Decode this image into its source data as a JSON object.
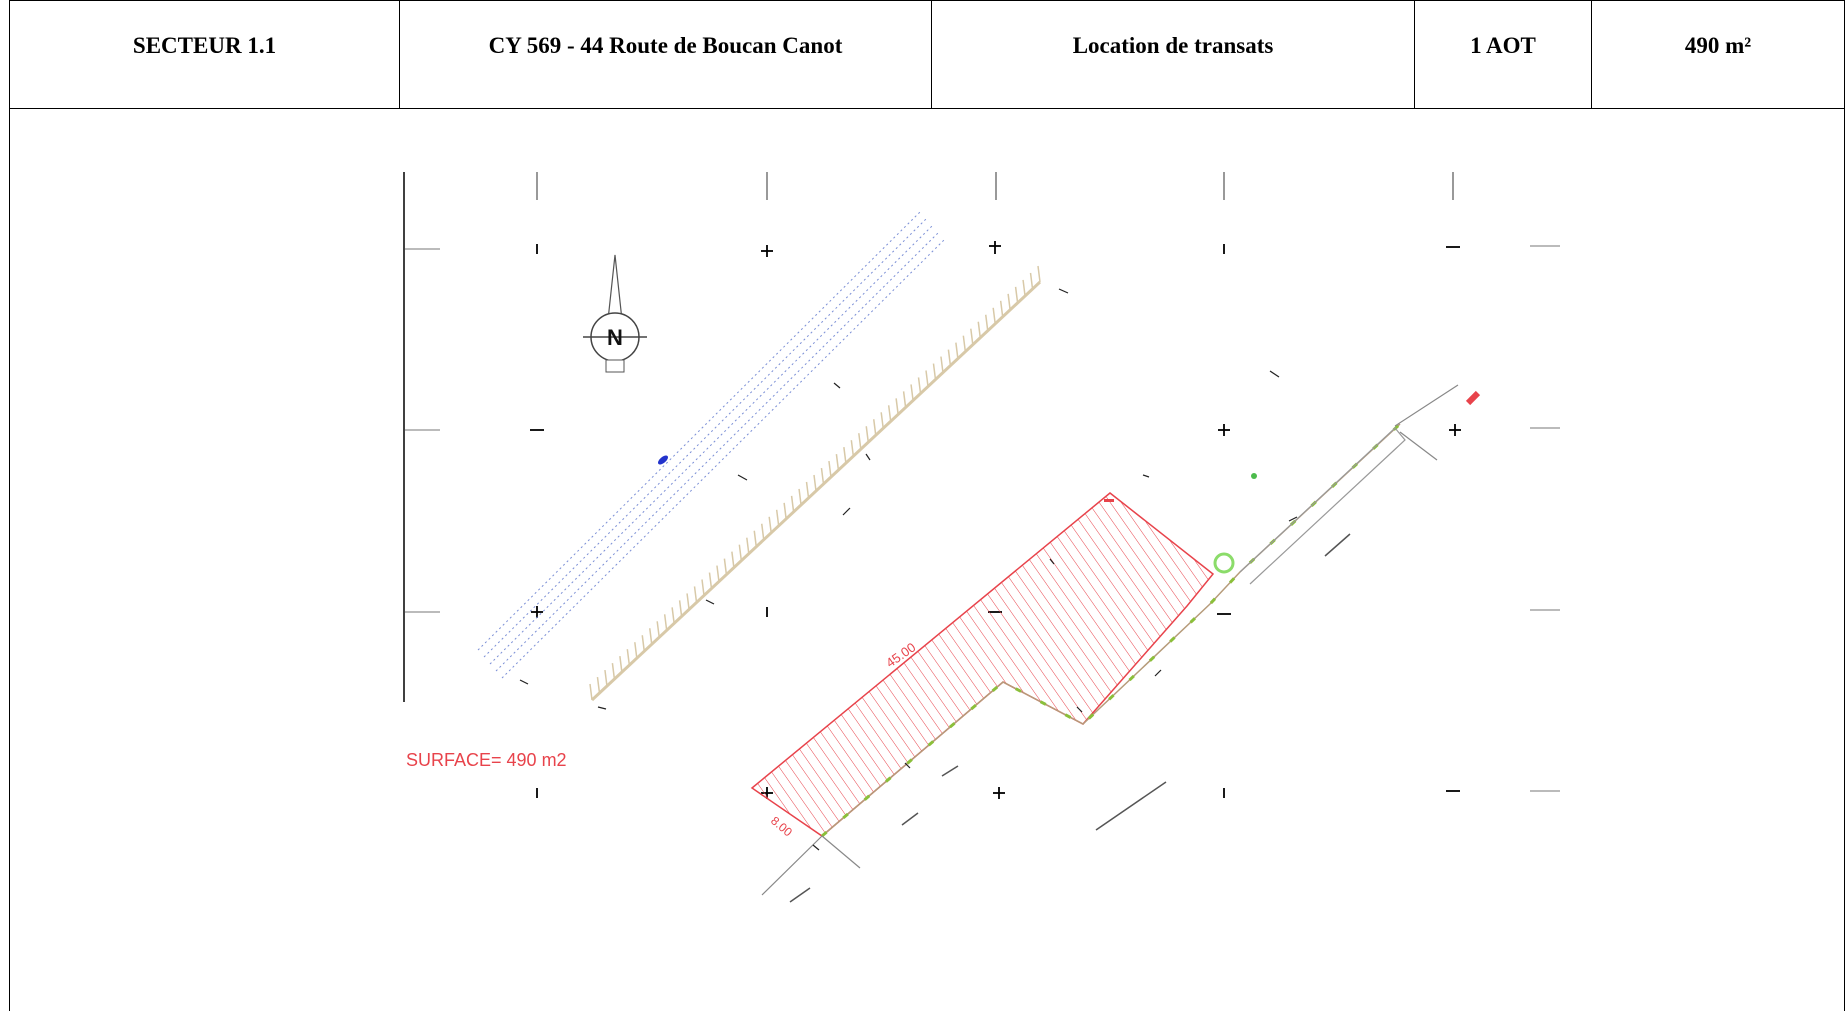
{
  "header": {
    "sector": "SECTEUR 1.1",
    "parcel": "CY 569 - 44 Route de Boucan Canot",
    "activity": "Location de transats",
    "aot": "1 AOT",
    "area": "490 m²"
  },
  "plan": {
    "surface_label": "SURFACE= 490 m2",
    "dim_length": "45.00",
    "dim_width": "8.00",
    "north_letter": "N",
    "hatch_color": "#e8434b",
    "boundary_color": "#8bbf3a",
    "contour_color": "#d8c9a8",
    "dotted_color": "#7b8fd6"
  }
}
